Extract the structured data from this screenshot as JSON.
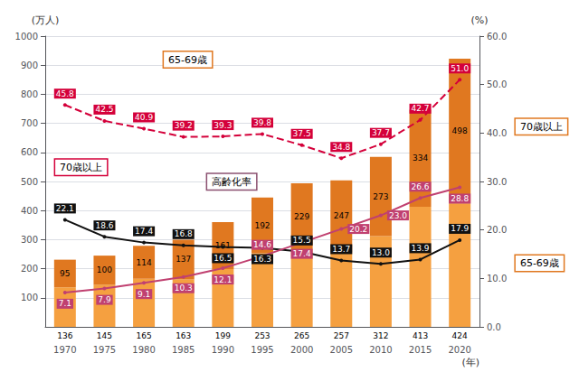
{
  "chart_data": {
    "type": "bar",
    "xlabel": "(年)",
    "ylabel": "(万人)",
    "y2label": "(%)",
    "categories": [
      "1970",
      "1975",
      "1980",
      "1985",
      "1990",
      "1995",
      "2000",
      "2005",
      "2010",
      "2015",
      "2020"
    ],
    "ylim": [
      0,
      1000
    ],
    "yticks": [
      100,
      200,
      300,
      400,
      500,
      600,
      700,
      800,
      900,
      1000
    ],
    "y2lim": [
      0,
      60.0
    ],
    "y2ticks": [
      {
        "value": 0,
        "label": "0.0"
      },
      {
        "value": 10,
        "label": "10.0"
      },
      {
        "value": 20,
        "label": "20.0"
      },
      {
        "value": 30,
        "label": "30.0"
      },
      {
        "value": 40,
        "label": "40.0"
      },
      {
        "value": 50,
        "label": "50.0"
      },
      {
        "value": 60,
        "label": "60.0"
      }
    ],
    "grid": true,
    "stacked": true,
    "data_labels": true,
    "series": [
      {
        "name": "65-69歳",
        "type": "bar",
        "color": "#F5A040",
        "values": [
          136,
          145,
          165,
          163,
          199,
          253,
          265,
          257,
          312,
          413,
          424
        ]
      },
      {
        "name": "70歳以上",
        "type": "bar",
        "color": "#E07820",
        "values": [
          95,
          100,
          114,
          137,
          161,
          192,
          229,
          247,
          273,
          334,
          498
        ]
      },
      {
        "name": "65-69歳",
        "type": "line",
        "axis": "y2",
        "color": "#D4003A",
        "line_style": "dashed",
        "values": [
          45.8,
          42.5,
          40.9,
          39.2,
          39.3,
          39.8,
          37.5,
          34.8,
          37.7,
          42.7,
          51.0
        ],
        "value_labels": [
          "45.8",
          "42.5",
          "40.9",
          "39.2",
          "39.3",
          "39.8",
          "37.5",
          "34.8",
          "37.7",
          "42.7",
          "51.0"
        ]
      },
      {
        "name": "70歳以上",
        "type": "line",
        "axis": "y2",
        "color": "#111111",
        "line_style": "solid",
        "values": [
          22.1,
          18.6,
          17.4,
          16.8,
          16.5,
          16.3,
          15.5,
          13.7,
          13.0,
          13.9,
          17.9
        ],
        "value_labels": [
          "22.1",
          "18.6",
          "17.4",
          "16.8",
          "16.5",
          "16.3",
          "15.5",
          "13.7",
          "13.0",
          "13.9",
          "17.9"
        ]
      },
      {
        "name": "高齢化率",
        "type": "line",
        "axis": "y2",
        "color": "#C04070",
        "line_style": "solid",
        "values": [
          7.1,
          7.9,
          9.1,
          10.3,
          12.1,
          14.6,
          17.4,
          20.2,
          23.0,
          26.6,
          28.8
        ],
        "value_labels": [
          "7.1",
          "7.9",
          "9.1",
          "10.3",
          "12.1",
          "14.6",
          "17.4",
          "20.2",
          "23.0",
          "26.6",
          "28.8"
        ]
      }
    ],
    "annotations": [
      {
        "text": "65-69歳",
        "color": "#E07820"
      },
      {
        "text": "70歳以上",
        "color": "#D4003A"
      },
      {
        "text": "高齢化率",
        "color": "#8B5070"
      },
      {
        "text": "70歳以上",
        "color": "#E07820"
      },
      {
        "text": "65-69歳",
        "color": "#E07820"
      }
    ]
  }
}
